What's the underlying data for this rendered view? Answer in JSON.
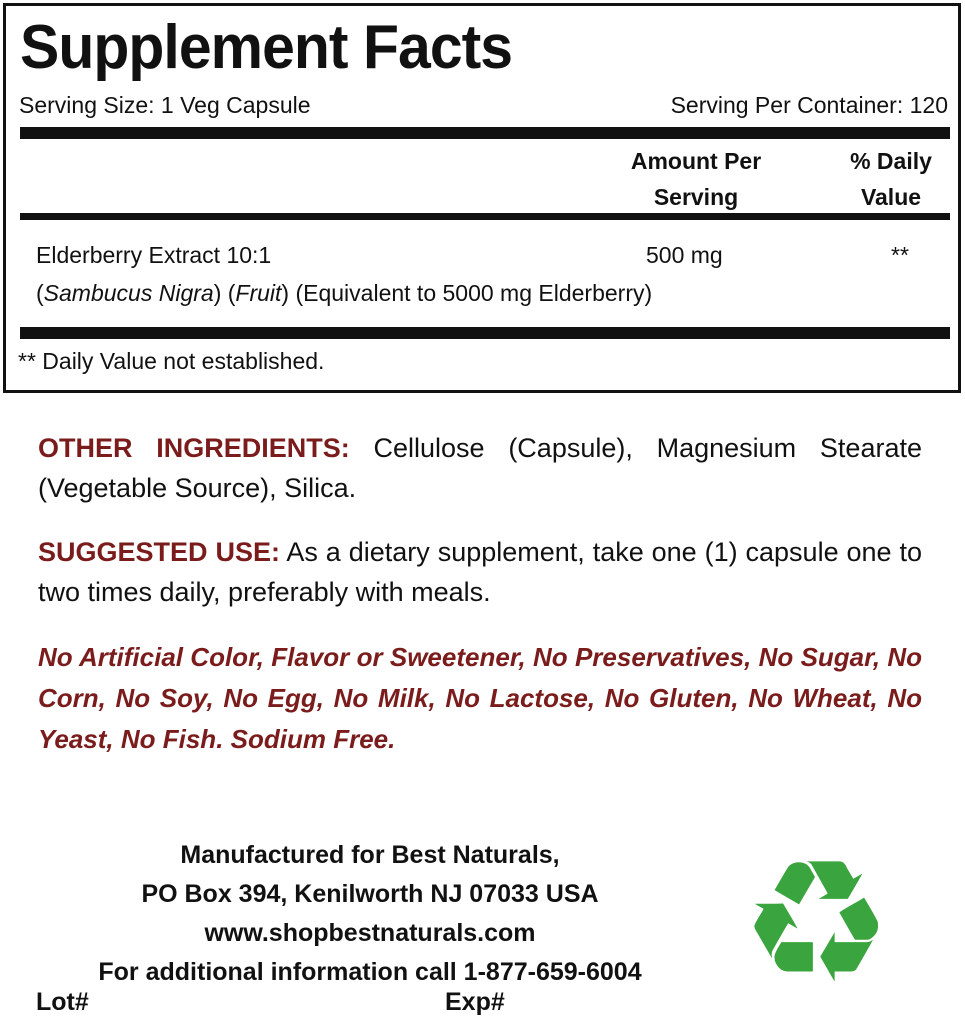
{
  "facts": {
    "title": "Supplement Facts",
    "serving_size": "Serving Size: 1 Veg Capsule",
    "servings_per_container": "Serving Per Container: 120",
    "col_amount_line1": "Amount Per",
    "col_amount_line2": "Serving",
    "col_dv_line1": "% Daily",
    "col_dv_line2": "Value",
    "ingredient": {
      "name": "Elderberry Extract 10:1",
      "amount": "500 mg",
      "dv": "**",
      "detail_open1": "(",
      "detail_species": "Sambucus Nigra",
      "detail_mid": ") (",
      "detail_part": "Fruit",
      "detail_rest": ") (Equivalent to 5000 mg Elderberry)"
    },
    "footnote": "** Daily Value not established."
  },
  "other_ingredients": {
    "label": "OTHER INGREDIENTS:",
    "text": " Cellulose (Capsule), Magnesium Stearate (Vegetable Source), Silica."
  },
  "suggested_use": {
    "label": "SUGGESTED USE:",
    "text": "  As a dietary supplement, take one (1) capsule one to two times daily, preferably with meals."
  },
  "free_from": "No Artificial Color, Flavor or Sweetener, No Preservatives, No Sugar, No Corn, No Soy, No Egg, No Milk, No Lactose, No Gluten, No Wheat, No Yeast, No Fish. Sodium Free.",
  "manufacturer": {
    "line1": "Manufactured for Best Naturals,",
    "line2": "PO Box 394, Kenilworth NJ 07033 USA",
    "line3": "www.shopbestnaturals.com",
    "line4": "For additional information call 1-877-659-6004",
    "lot": "Lot#",
    "exp": "Exp#"
  },
  "icons": {
    "recycle": "recycle-icon",
    "recycle_color": "#3aa53e"
  },
  "colors": {
    "label_red": "#7b1c1c"
  }
}
